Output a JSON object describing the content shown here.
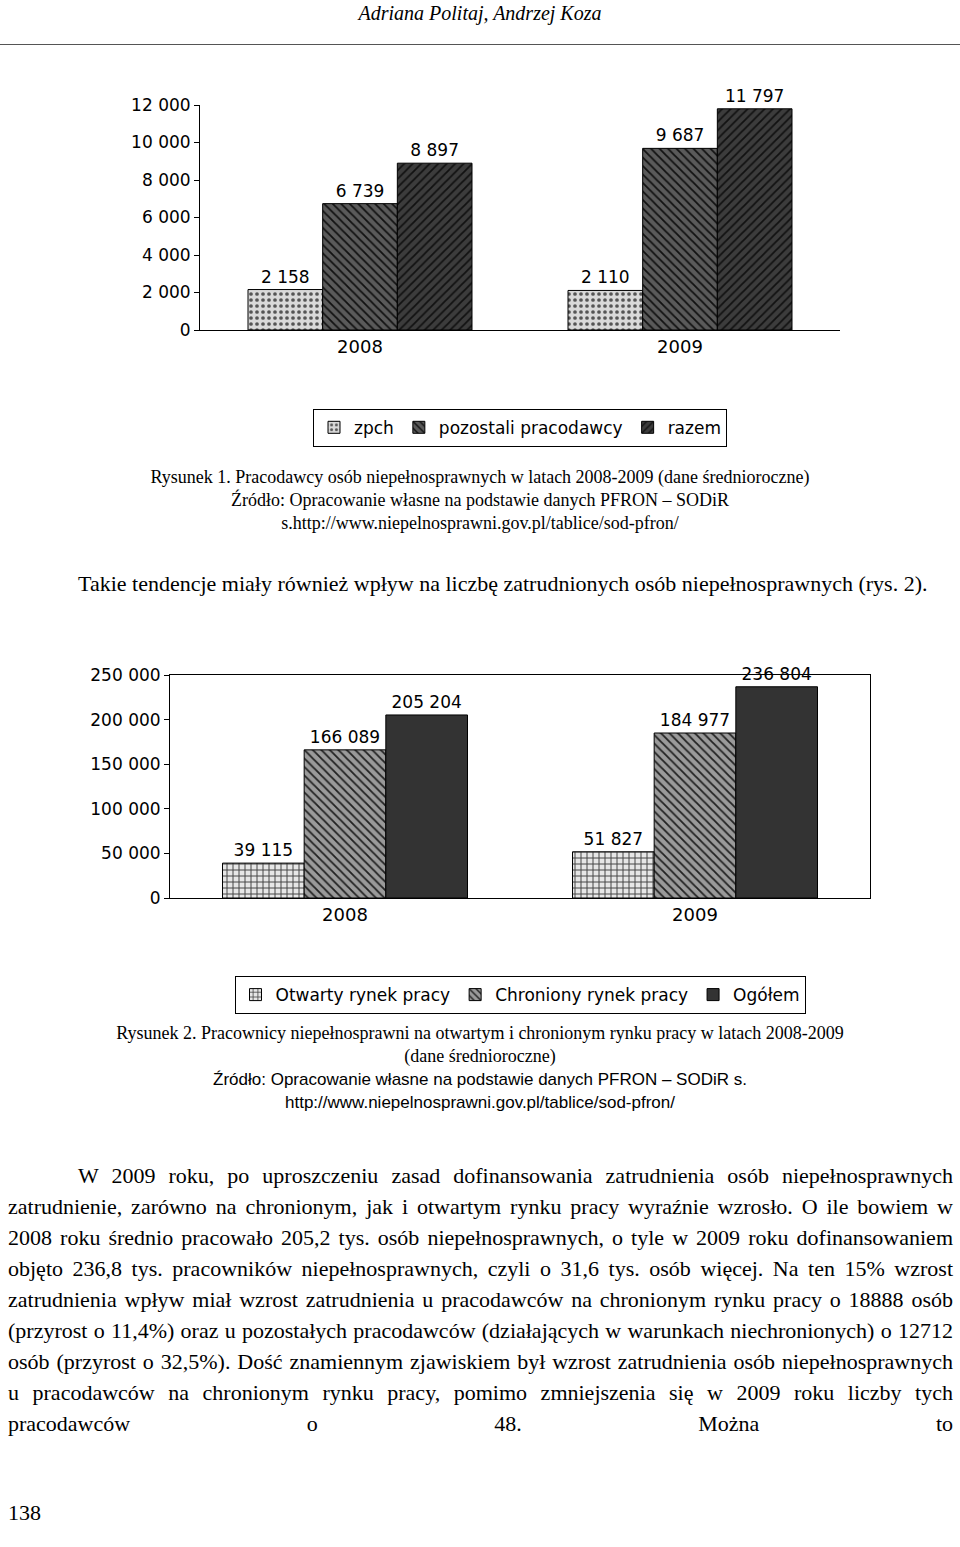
{
  "header": "Adriana Politaj, Andrzej Koza",
  "chart_data": [
    {
      "type": "bar",
      "categories": [
        "2008",
        "2009"
      ],
      "series": [
        {
          "name": "zpch",
          "color": "#d9d9d9",
          "values": [
            2158,
            2110
          ],
          "value_labels": [
            "2 158",
            "2 110"
          ]
        },
        {
          "name": "pozostali pracodawcy",
          "color": "#5a5a5a",
          "values": [
            6739,
            9687
          ],
          "value_labels": [
            "6 739",
            "9 687"
          ]
        },
        {
          "name": "razem",
          "color": "#3c3c3c",
          "values": [
            8897,
            11797
          ],
          "value_labels": [
            "8 897",
            "11 797"
          ]
        }
      ],
      "ylim": [
        0,
        12000
      ],
      "yticks": [
        0,
        {
          "value": 2000,
          "label": "2 000"
        },
        {
          "value": 4000,
          "label": "4 000"
        },
        {
          "value": 6000,
          "label": "6 000"
        },
        {
          "value": 8000,
          "label": "8 000"
        },
        {
          "value": 10000,
          "label": "10 000"
        },
        {
          "value": 12000,
          "label": "12 000"
        }
      ],
      "grid": false,
      "legend": "bottom",
      "data_labels": true
    },
    {
      "type": "bar",
      "categories": [
        "2008",
        "2009"
      ],
      "series": [
        {
          "name": "Otwarty rynek pracy",
          "color": "#e6e6e6",
          "values": [
            39115,
            51827
          ],
          "value_labels": [
            "39 115",
            "51 827"
          ]
        },
        {
          "name": "Chroniony rynek pracy",
          "color": "#9a9a9a",
          "values": [
            166089,
            184977
          ],
          "value_labels": [
            "166 089",
            "184 977"
          ]
        },
        {
          "name": "Ogółem",
          "color": "#333333",
          "values": [
            205204,
            236804
          ],
          "value_labels": [
            "205 204",
            "236 804"
          ]
        }
      ],
      "ylim": [
        0,
        250000
      ],
      "yticks": [
        0,
        {
          "value": 50000,
          "label": "50 000"
        },
        {
          "value": 100000,
          "label": "100 000"
        },
        {
          "value": 150000,
          "label": "150 000"
        },
        {
          "value": 200000,
          "label": "200 000"
        },
        {
          "value": 250000,
          "label": "250 000"
        }
      ],
      "grid": false,
      "legend": "bottom",
      "data_labels": true
    }
  ],
  "captions": [
    {
      "lines": [
        "Rysunek 1. Pracodawcy osób niepełnosprawnych w latach 2008-2009 (dane średnioroczne)",
        "Źródło: Opracowanie własne na podstawie danych PFRON – SODiR",
        "s.http://www.niepelnosprawni.gov.pl/tablice/sod-pfron/"
      ]
    },
    {
      "lines": [
        "Rysunek 2. Pracownicy niepełnosprawni na otwartym i chronionym rynku pracy w latach 2008-2009",
        "(dane średnioroczne)",
        "Źródło: Opracowanie własne na podstawie danych PFRON – SODiR s.",
        "http://www.niepelnosprawni.gov.pl/tablice/sod-pfron/"
      ]
    }
  ],
  "paragraphs": [
    "Takie tendencje miały również wpływ na liczbę zatrudnionych osób niepełnosprawnych (rys. 2).",
    "W 2009 roku, po uproszczeniu zasad dofinansowania zatrudnienia osób niepełnosprawnych zatrudnienie, zarówno na chronionym, jak i otwartym rynku pracy wyraźnie wzrosło. O ile bowiem w 2008 roku średnio pracowało 205,2 tys. osób niepełnosprawnych, o tyle w 2009 roku dofinansowaniem objęto 236,8 tys. pracowników niepełnosprawnych, czyli o 31,6 tys. osób więcej. Na ten 15% wzrost zatrudnienia wpływ miał wzrost zatrudnienia u pracodawców na chronionym rynku pracy o 18888 osób (przyrost o 11,4%) oraz u pozostałych pracodawców (działających w warunkach niechronionych) o 12712 osób (przyrost o 32,5%). Dość znamiennym zjawiskiem był wzrost zatrudnienia osób niepełnosprawnych u pracodawców na chronionym rynku pracy, pomimo zmniejszenia się w 2009 roku liczby tych pracodawców o 48. Można to"
  ],
  "page_number": "138"
}
